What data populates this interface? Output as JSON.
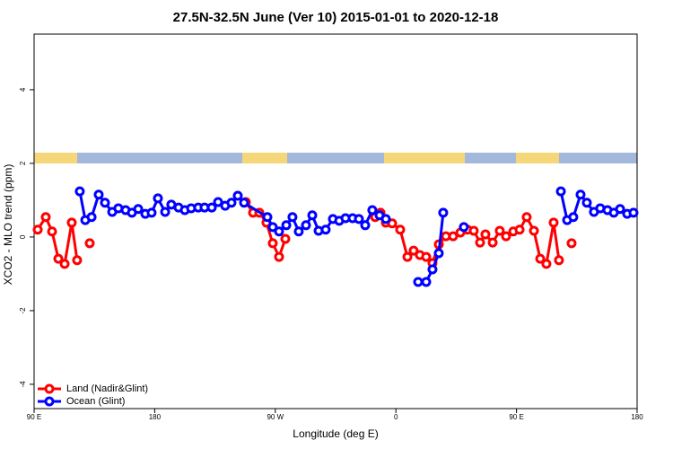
{
  "chart_data": {
    "type": "line",
    "title": "27.5N-32.5N June (Ver 10)   2015-01-01 to 2020-12-18",
    "x_label": "Longitude (deg E)",
    "y_label": "XCO2 - MLO trend (ppm)",
    "xlim": [
      90,
      540
    ],
    "xticks": [
      {
        "value": 90,
        "label": "90 E"
      },
      {
        "value": 180,
        "label": "180"
      },
      {
        "value": 270,
        "label": "90 W"
      },
      {
        "value": 360,
        "label": "0"
      },
      {
        "value": 450,
        "label": "90 E"
      },
      {
        "value": 540,
        "label": "180"
      }
    ],
    "ylim": [
      -4.66,
      5.51
    ],
    "yticks": [
      -4,
      -2,
      0,
      2,
      4
    ],
    "legend": "bottom-left",
    "series": [
      {
        "name": "Land (Nadir&Glint)",
        "color": "#ff0000",
        "x": [
          92.7,
          98.7,
          103.4,
          108.1,
          112.8,
          118.1,
          122.1,
          null,
          131.5,
          null,
          248.0,
          253.4,
          258.1,
          263.4,
          268.1,
          272.8,
          277.5,
          null,
          344.5,
          348.5,
          352.5,
          357.2,
          363.2,
          368.6,
          373.2,
          377.9,
          382.6,
          387.3,
          392.0,
          397.3,
          402.7,
          408.1,
          413.4,
          418.1,
          422.8,
          426.8,
          432.2,
          437.5,
          442.2,
          447.6,
          452.3,
          457.6,
          463.0,
          467.7,
          472.3,
          477.7,
          481.7,
          null,
          491.1
        ],
        "values": [
          0.2,
          0.54,
          0.15,
          -0.59,
          -0.73,
          0.39,
          -0.63,
          null,
          -0.17,
          null,
          0.95,
          0.66,
          0.66,
          0.39,
          -0.17,
          -0.54,
          -0.05,
          null,
          0.54,
          0.66,
          0.39,
          0.37,
          0.2,
          -0.54,
          -0.37,
          -0.49,
          -0.54,
          -0.71,
          -0.2,
          0.02,
          0.02,
          0.12,
          0.2,
          0.17,
          -0.15,
          0.07,
          -0.15,
          0.17,
          0.02,
          0.15,
          0.2,
          0.54,
          0.17,
          -0.59,
          -0.73,
          0.39,
          -0.63,
          null,
          -0.17
        ]
      },
      {
        "name": "Ocean (Glint)",
        "color": "#0000ff",
        "x": [
          124.1,
          128.2,
          132.9,
          138.2,
          142.9,
          148.3,
          152.9,
          158.3,
          163.0,
          167.7,
          173.0,
          177.7,
          182.4,
          187.8,
          192.4,
          197.8,
          202.5,
          207.2,
          212.5,
          217.2,
          222.6,
          227.3,
          232.6,
          237.3,
          242.0,
          246.7,
          264.1,
          268.1,
          272.8,
          278.2,
          282.8,
          287.5,
          292.9,
          297.6,
          302.3,
          307.6,
          313.0,
          317.7,
          322.4,
          327.7,
          332.4,
          337.1,
          342.4,
          347.8,
          352.5,
          null,
          376.6,
          382.6,
          387.3,
          392.0,
          395.3,
          null,
          410.7,
          null,
          483.1,
          487.8,
          492.4,
          497.8,
          502.5,
          507.8,
          512.5,
          517.9,
          522.6,
          527.3,
          532.6,
          537.3
        ],
        "values": [
          1.24,
          0.46,
          0.54,
          1.15,
          0.93,
          0.68,
          0.78,
          0.73,
          0.66,
          0.76,
          0.63,
          0.66,
          1.05,
          0.68,
          0.88,
          0.8,
          0.73,
          0.78,
          0.8,
          0.8,
          0.8,
          0.95,
          0.85,
          0.93,
          1.12,
          0.93,
          0.54,
          0.27,
          0.15,
          0.32,
          0.54,
          0.15,
          0.32,
          0.59,
          0.17,
          0.2,
          0.49,
          0.44,
          0.51,
          0.51,
          0.49,
          0.32,
          0.73,
          0.59,
          0.49,
          null,
          -1.22,
          -1.22,
          -0.88,
          -0.44,
          0.66,
          null,
          0.27,
          null,
          1.24,
          0.46,
          0.54,
          1.15,
          0.93,
          0.68,
          0.78,
          0.73,
          0.66,
          0.76,
          0.63,
          0.66
        ]
      }
    ]
  }
}
